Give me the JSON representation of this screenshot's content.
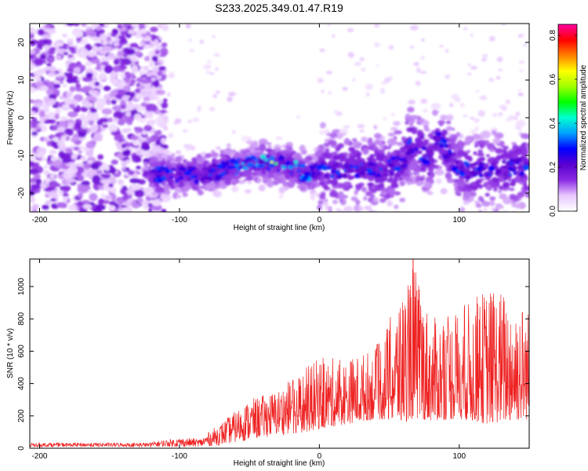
{
  "title": "S233.2025.349.01.47.R19",
  "chart_data": [
    {
      "type": "heatmap",
      "xlabel": "Height of straight line (km)",
      "ylabel": "Frequency (Hz)",
      "xlim": [
        -207,
        150
      ],
      "ylim": [
        -25,
        25
      ],
      "xticks": [
        -200,
        -100,
        0,
        100
      ],
      "yticks": [
        -20,
        -10,
        0,
        10,
        20
      ],
      "colorbar": {
        "label": "Normalized spectral amplitude",
        "range": [
          0.0,
          0.85
        ],
        "ticks": [
          0.0,
          0.2,
          0.4,
          0.6,
          0.8
        ],
        "colors": [
          "#ffffff",
          "#e8c8ff",
          "#8a2be2",
          "#5a00d0",
          "#0000ff",
          "#00a0ff",
          "#00ffd0",
          "#00ff00",
          "#a0ff00",
          "#ffff00",
          "#ff8000",
          "#ff0000",
          "#ff00a0"
        ]
      },
      "ridge": {
        "x": [
          -120,
          -100,
          -80,
          -60,
          -40,
          -35,
          -20,
          -10,
          0,
          20,
          40,
          60,
          65,
          80,
          85,
          100,
          120,
          140,
          150
        ],
        "freq": [
          -15,
          -15,
          -15,
          -13,
          -12,
          -12,
          -13,
          -15,
          -14,
          -14,
          -14,
          -12,
          -7,
          -11,
          -5,
          -14,
          -14,
          -13,
          -13
        ]
      }
    },
    {
      "type": "line",
      "xlabel": "Height of straight line (km)",
      "ylabel": "SNR (10 * v/v)",
      "xlim": [
        -207,
        150
      ],
      "ylim": [
        0,
        1170
      ],
      "xticks": [
        -200,
        -100,
        0,
        100
      ],
      "yticks": [
        0,
        200,
        400,
        600,
        800,
        1000
      ],
      "color": "#ee2222",
      "envelope": {
        "x": [
          -207,
          -120,
          -100,
          -85,
          -70,
          -50,
          -30,
          -10,
          0,
          20,
          40,
          60,
          67,
          80,
          100,
          120,
          140,
          150
        ],
        "upper": [
          40,
          40,
          65,
          60,
          160,
          300,
          360,
          500,
          560,
          560,
          620,
          980,
          1170,
          800,
          860,
          1000,
          980,
          860
        ],
        "lower": [
          10,
          10,
          10,
          10,
          20,
          50,
          80,
          100,
          120,
          150,
          180,
          160,
          180,
          170,
          180,
          150,
          170,
          180
        ]
      }
    }
  ]
}
